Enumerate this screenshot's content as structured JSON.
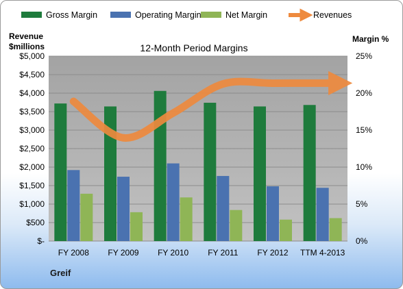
{
  "chart_data": {
    "type": "bar",
    "title": "12-Month Period Margins",
    "company": "Greif",
    "left_axis_title": [
      "Revenue",
      "$millions"
    ],
    "right_axis_title": "Margin %",
    "categories": [
      "FY 2008",
      "FY 2009",
      "FY 2010",
      "FY 2011",
      "FY 2012",
      "TTM 4-2013"
    ],
    "left_ticks": [
      "$-",
      "$500",
      "$1,000",
      "$1,500",
      "$2,000",
      "$2,500",
      "$3,000",
      "$3,500",
      "$4,000",
      "$4,500",
      "$5,000"
    ],
    "right_ticks": [
      "0%",
      "5%",
      "10%",
      "15%",
      "20%",
      "25%"
    ],
    "left_ylim": [
      0,
      5000
    ],
    "right_ylim": [
      0,
      25
    ],
    "series": [
      {
        "name": "Gross Margin",
        "kind": "bar",
        "axis": "right",
        "color": "#1e7b3c",
        "values": [
          18.6,
          18.2,
          20.3,
          18.7,
          18.2,
          18.4
        ]
      },
      {
        "name": "Operating Margin",
        "kind": "bar",
        "axis": "right",
        "color": "#4a72b0",
        "values": [
          9.6,
          8.7,
          10.5,
          8.8,
          7.4,
          7.2
        ]
      },
      {
        "name": "Net Margin",
        "kind": "bar",
        "axis": "right",
        "color": "#8fb556",
        "values": [
          6.4,
          3.9,
          5.9,
          4.2,
          2.9,
          3.1
        ]
      },
      {
        "name": "Revenues",
        "kind": "line",
        "axis": "left",
        "color": "#ee8a3e",
        "values": [
          3777,
          2792,
          3462,
          4249,
          4269,
          4270
        ]
      }
    ],
    "plot_background": "#a6a6a6",
    "grid": true
  }
}
